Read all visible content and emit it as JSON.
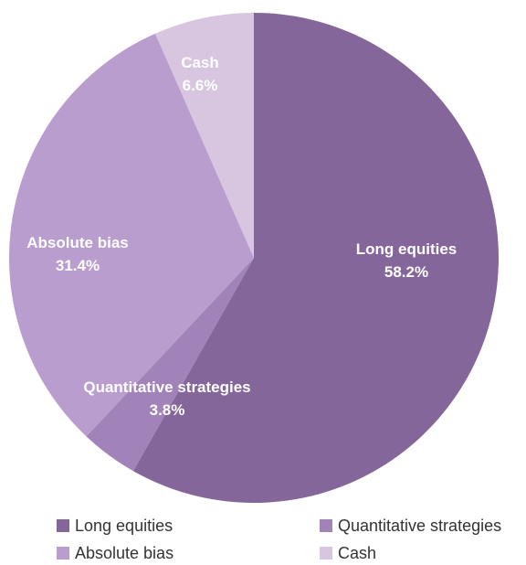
{
  "chart_data": {
    "type": "pie",
    "title": "",
    "slices": [
      {
        "label": "Long equities",
        "value": 58.2,
        "display": "58.2%",
        "color": "#84669b"
      },
      {
        "label": "Quantitative strategies",
        "value": 3.8,
        "display": "3.8%",
        "color": "#a182b9"
      },
      {
        "label": "Absolute bias",
        "value": 31.4,
        "display": "31.4%",
        "color": "#b99dce"
      },
      {
        "label": "Cash",
        "value": 6.6,
        "display": "6.6%",
        "color": "#d8c6e1"
      }
    ],
    "start_angle_deg": 0,
    "direction": "clockwise",
    "legend": {
      "placement": "bottom",
      "items": [
        {
          "label": "Long equities",
          "color": "#84669b"
        },
        {
          "label": "Quantitative strategies",
          "color": "#a182b9"
        },
        {
          "label": "Absolute bias",
          "color": "#b99dce"
        },
        {
          "label": "Cash",
          "color": "#d8c6e1"
        }
      ]
    }
  }
}
